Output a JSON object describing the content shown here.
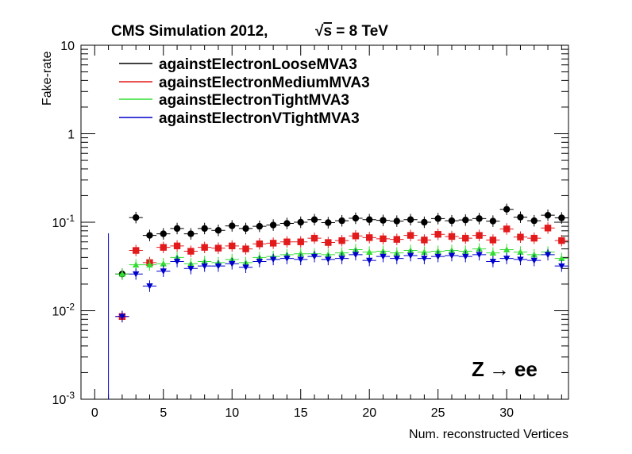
{
  "chart_data": {
    "type": "scatter",
    "title": "CMS Simulation 2012,",
    "energy_label": "√s = 8 TeV",
    "energy_parts": {
      "sqrt": "√",
      "s": "s",
      "rest": " = 8 TeV"
    },
    "xlabel": "Num. reconstructed Vertices",
    "ylabel": "Fake-rate",
    "annotation": "Z → ee",
    "annotation_parts": {
      "z": "Z",
      "arrow": "→",
      "ee": "ee"
    },
    "x_range": [
      -1,
      34.5
    ],
    "y_range": [
      0.001,
      10
    ],
    "y_scale": "log",
    "grid": false,
    "legend_placement": "top-left",
    "x_ticks": [
      0,
      5,
      10,
      15,
      20,
      25,
      30
    ],
    "y_ticks": [
      {
        "value": 0.001,
        "base": "10",
        "exp": "-3"
      },
      {
        "value": 0.01,
        "base": "10",
        "exp": "-2"
      },
      {
        "value": 0.1,
        "base": "10",
        "exp": "-1"
      },
      {
        "value": 1,
        "base": "1",
        "exp": ""
      },
      {
        "value": 10,
        "base": "10",
        "exp": ""
      }
    ],
    "series": [
      {
        "name": "againstElectronLooseMVA3",
        "color": "#000000",
        "marker": "circle",
        "x": [
          2,
          3,
          4,
          5,
          6,
          7,
          8,
          9,
          10,
          11,
          12,
          13,
          14,
          15,
          16,
          17,
          18,
          19,
          20,
          21,
          22,
          23,
          24,
          25,
          26,
          27,
          28,
          29,
          30,
          31,
          32,
          33,
          34
        ],
        "y": [
          0.026,
          0.113,
          0.071,
          0.074,
          0.085,
          0.074,
          0.085,
          0.081,
          0.091,
          0.085,
          0.09,
          0.093,
          0.097,
          0.1,
          0.107,
          0.099,
          0.104,
          0.111,
          0.107,
          0.105,
          0.103,
          0.107,
          0.1,
          0.11,
          0.104,
          0.106,
          0.11,
          0.103,
          0.14,
          0.114,
          0.104,
          0.12,
          0.112
        ]
      },
      {
        "name": "againstElectronMediumMVA3",
        "color": "#e31a1c",
        "marker": "square",
        "x": [
          2,
          3,
          4,
          5,
          6,
          7,
          8,
          9,
          10,
          11,
          12,
          13,
          14,
          15,
          16,
          17,
          18,
          19,
          20,
          21,
          22,
          23,
          24,
          25,
          26,
          27,
          28,
          29,
          30,
          31,
          32,
          33,
          34
        ],
        "y": [
          0.0086,
          0.048,
          0.035,
          0.052,
          0.054,
          0.047,
          0.052,
          0.051,
          0.054,
          0.05,
          0.057,
          0.058,
          0.06,
          0.06,
          0.066,
          0.059,
          0.062,
          0.07,
          0.067,
          0.065,
          0.064,
          0.071,
          0.063,
          0.073,
          0.069,
          0.066,
          0.071,
          0.063,
          0.084,
          0.068,
          0.066,
          0.086,
          0.062
        ]
      },
      {
        "name": "againstElectronTightMVA3",
        "color": "#33dd33",
        "marker": "triangle-up",
        "x": [
          2,
          3,
          4,
          5,
          6,
          7,
          8,
          9,
          10,
          11,
          12,
          13,
          14,
          15,
          16,
          17,
          18,
          19,
          20,
          21,
          22,
          23,
          24,
          25,
          26,
          27,
          28,
          29,
          30,
          31,
          32,
          33,
          34
        ],
        "y": [
          0.026,
          0.033,
          0.033,
          0.034,
          0.04,
          0.034,
          0.036,
          0.035,
          0.038,
          0.035,
          0.04,
          0.041,
          0.043,
          0.044,
          0.044,
          0.043,
          0.045,
          0.049,
          0.046,
          0.047,
          0.045,
          0.048,
          0.046,
          0.047,
          0.048,
          0.047,
          0.05,
          0.045,
          0.049,
          0.046,
          0.043,
          0.046,
          0.039
        ]
      },
      {
        "name": "againstElectronVTightMVA3",
        "color": "#0000cc",
        "marker": "triangle-down",
        "x": [
          2,
          3,
          4,
          5,
          6,
          7,
          8,
          9,
          10,
          11,
          12,
          13,
          14,
          15,
          16,
          17,
          18,
          19,
          20,
          21,
          22,
          23,
          24,
          25,
          26,
          27,
          28,
          29,
          30,
          31,
          32,
          33,
          34
        ],
        "y": [
          0.0086,
          0.026,
          0.019,
          0.028,
          0.036,
          0.03,
          0.032,
          0.032,
          0.034,
          0.031,
          0.036,
          0.038,
          0.039,
          0.038,
          0.041,
          0.038,
          0.039,
          0.043,
          0.037,
          0.041,
          0.039,
          0.042,
          0.039,
          0.041,
          0.042,
          0.041,
          0.043,
          0.036,
          0.039,
          0.038,
          0.037,
          0.043,
          0.032
        ]
      }
    ],
    "vertical_bars": [
      {
        "x": 1,
        "y_low": 0.001,
        "y_high": 0.075,
        "color": "#0000cc"
      }
    ]
  }
}
